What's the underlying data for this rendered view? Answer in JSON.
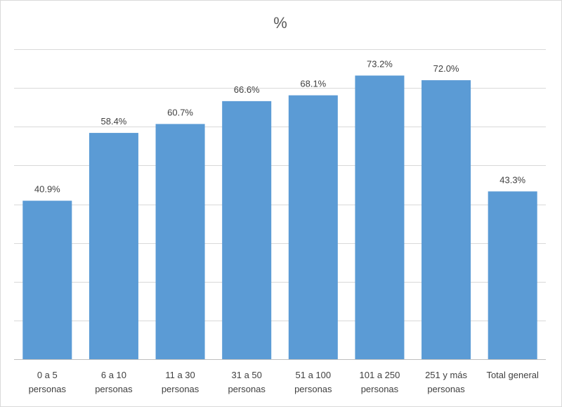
{
  "chart_data": {
    "type": "bar",
    "title": "%",
    "xlabel": "",
    "ylabel": "",
    "categories": [
      [
        "0 a 5",
        "personas"
      ],
      [
        "6 a 10",
        "personas"
      ],
      [
        "11 a 30",
        "personas"
      ],
      [
        "31 a 50",
        "personas"
      ],
      [
        "51 a 100",
        "personas"
      ],
      [
        "101 a 250",
        "personas"
      ],
      [
        "251 y más",
        "personas"
      ],
      [
        "Total general"
      ]
    ],
    "values": [
      40.9,
      58.4,
      60.7,
      66.6,
      68.1,
      73.2,
      72.0,
      43.3
    ],
    "value_labels": [
      "40.9%",
      "58.4%",
      "60.7%",
      "66.6%",
      "68.1%",
      "73.2%",
      "72.0%",
      "43.3%"
    ],
    "ylim": [
      0,
      80
    ],
    "grid": true,
    "bar_color": "#5b9bd5",
    "grid_color": "#d9d9d9",
    "axis_color": "#bfbfbf"
  }
}
